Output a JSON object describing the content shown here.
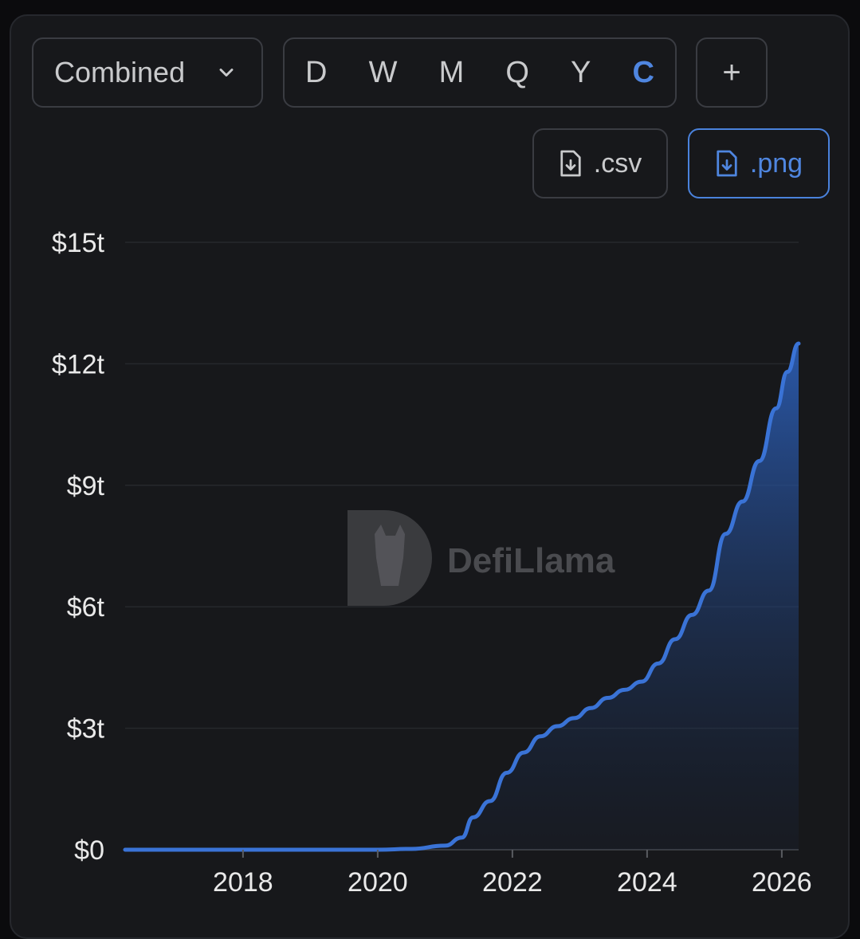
{
  "toolbar": {
    "group_select": "Combined",
    "periods": [
      "D",
      "W",
      "M",
      "Q",
      "Y",
      "C"
    ],
    "active_period": "C",
    "add_label": "+",
    "csv_label": ".csv",
    "png_label": ".png"
  },
  "watermark": "DefiLlama",
  "colors": {
    "line": "#3a73d6",
    "accent": "#4f86e0",
    "background": "#17181b"
  },
  "chart_data": {
    "type": "area",
    "title": "",
    "xlabel": "",
    "ylabel": "",
    "x_ticks": [
      "2018",
      "2020",
      "2022",
      "2024",
      "2026"
    ],
    "y_ticks": [
      "$0",
      "$3t",
      "$6t",
      "$9t",
      "$12t",
      "$15t"
    ],
    "xlim": [
      "2016-04",
      "2026-04"
    ],
    "ylim": [
      0,
      15
    ],
    "y_unit": "trillion USD",
    "grid": "horizontal",
    "legend": "none",
    "series": [
      {
        "x": [
          "2016-04",
          "2018-01",
          "2020-01",
          "2020-07",
          "2021-01",
          "2021-04",
          "2021-06",
          "2021-09",
          "2021-12",
          "2022-03",
          "2022-06",
          "2022-09",
          "2022-12",
          "2023-03",
          "2023-06",
          "2023-09",
          "2023-12",
          "2024-03",
          "2024-06",
          "2024-09",
          "2024-12",
          "2025-03",
          "2025-06",
          "2025-09",
          "2025-12",
          "2026-02",
          "2026-04"
        ],
        "y": [
          0,
          0,
          0,
          0.02,
          0.1,
          0.3,
          0.8,
          1.2,
          1.9,
          2.4,
          2.8,
          3.05,
          3.25,
          3.5,
          3.75,
          3.95,
          4.15,
          4.6,
          5.2,
          5.8,
          6.4,
          7.8,
          8.6,
          9.6,
          10.9,
          11.8,
          12.5
        ]
      }
    ]
  }
}
